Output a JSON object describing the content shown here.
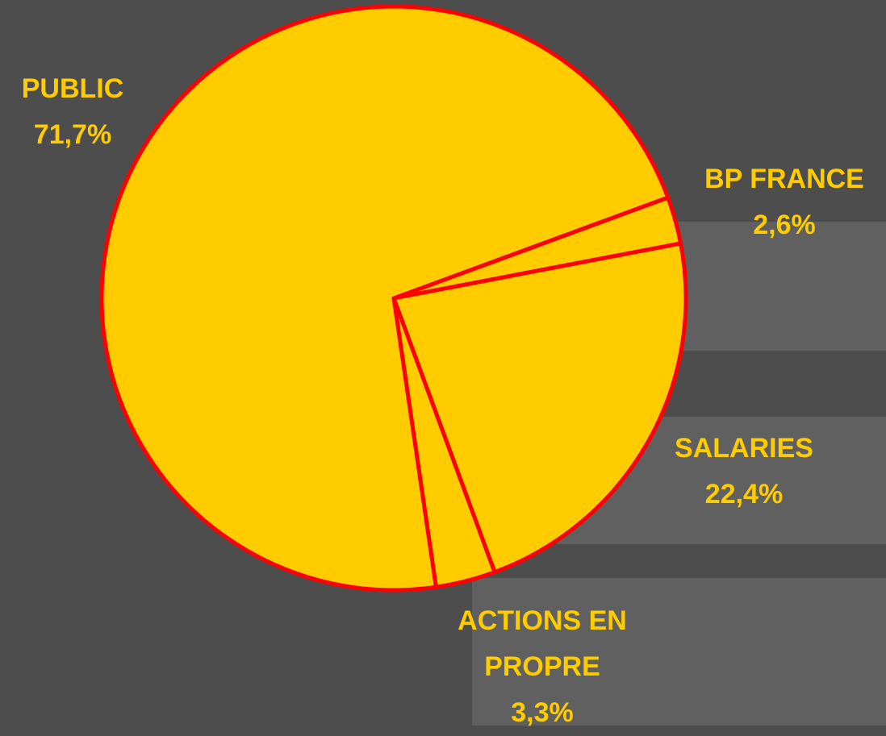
{
  "chart_data": {
    "type": "pie",
    "categories": [
      "BP FRANCE",
      "SALARIES",
      "ACTIONS EN PROPRE",
      "PUBLIC"
    ],
    "values": [
      2.6,
      22.4,
      3.3,
      71.7
    ],
    "value_labels": [
      "2,6%",
      "22,4%",
      "3,3%",
      "71,7%"
    ],
    "color": "#ffcc00",
    "edge_color": "#ff0000"
  }
}
